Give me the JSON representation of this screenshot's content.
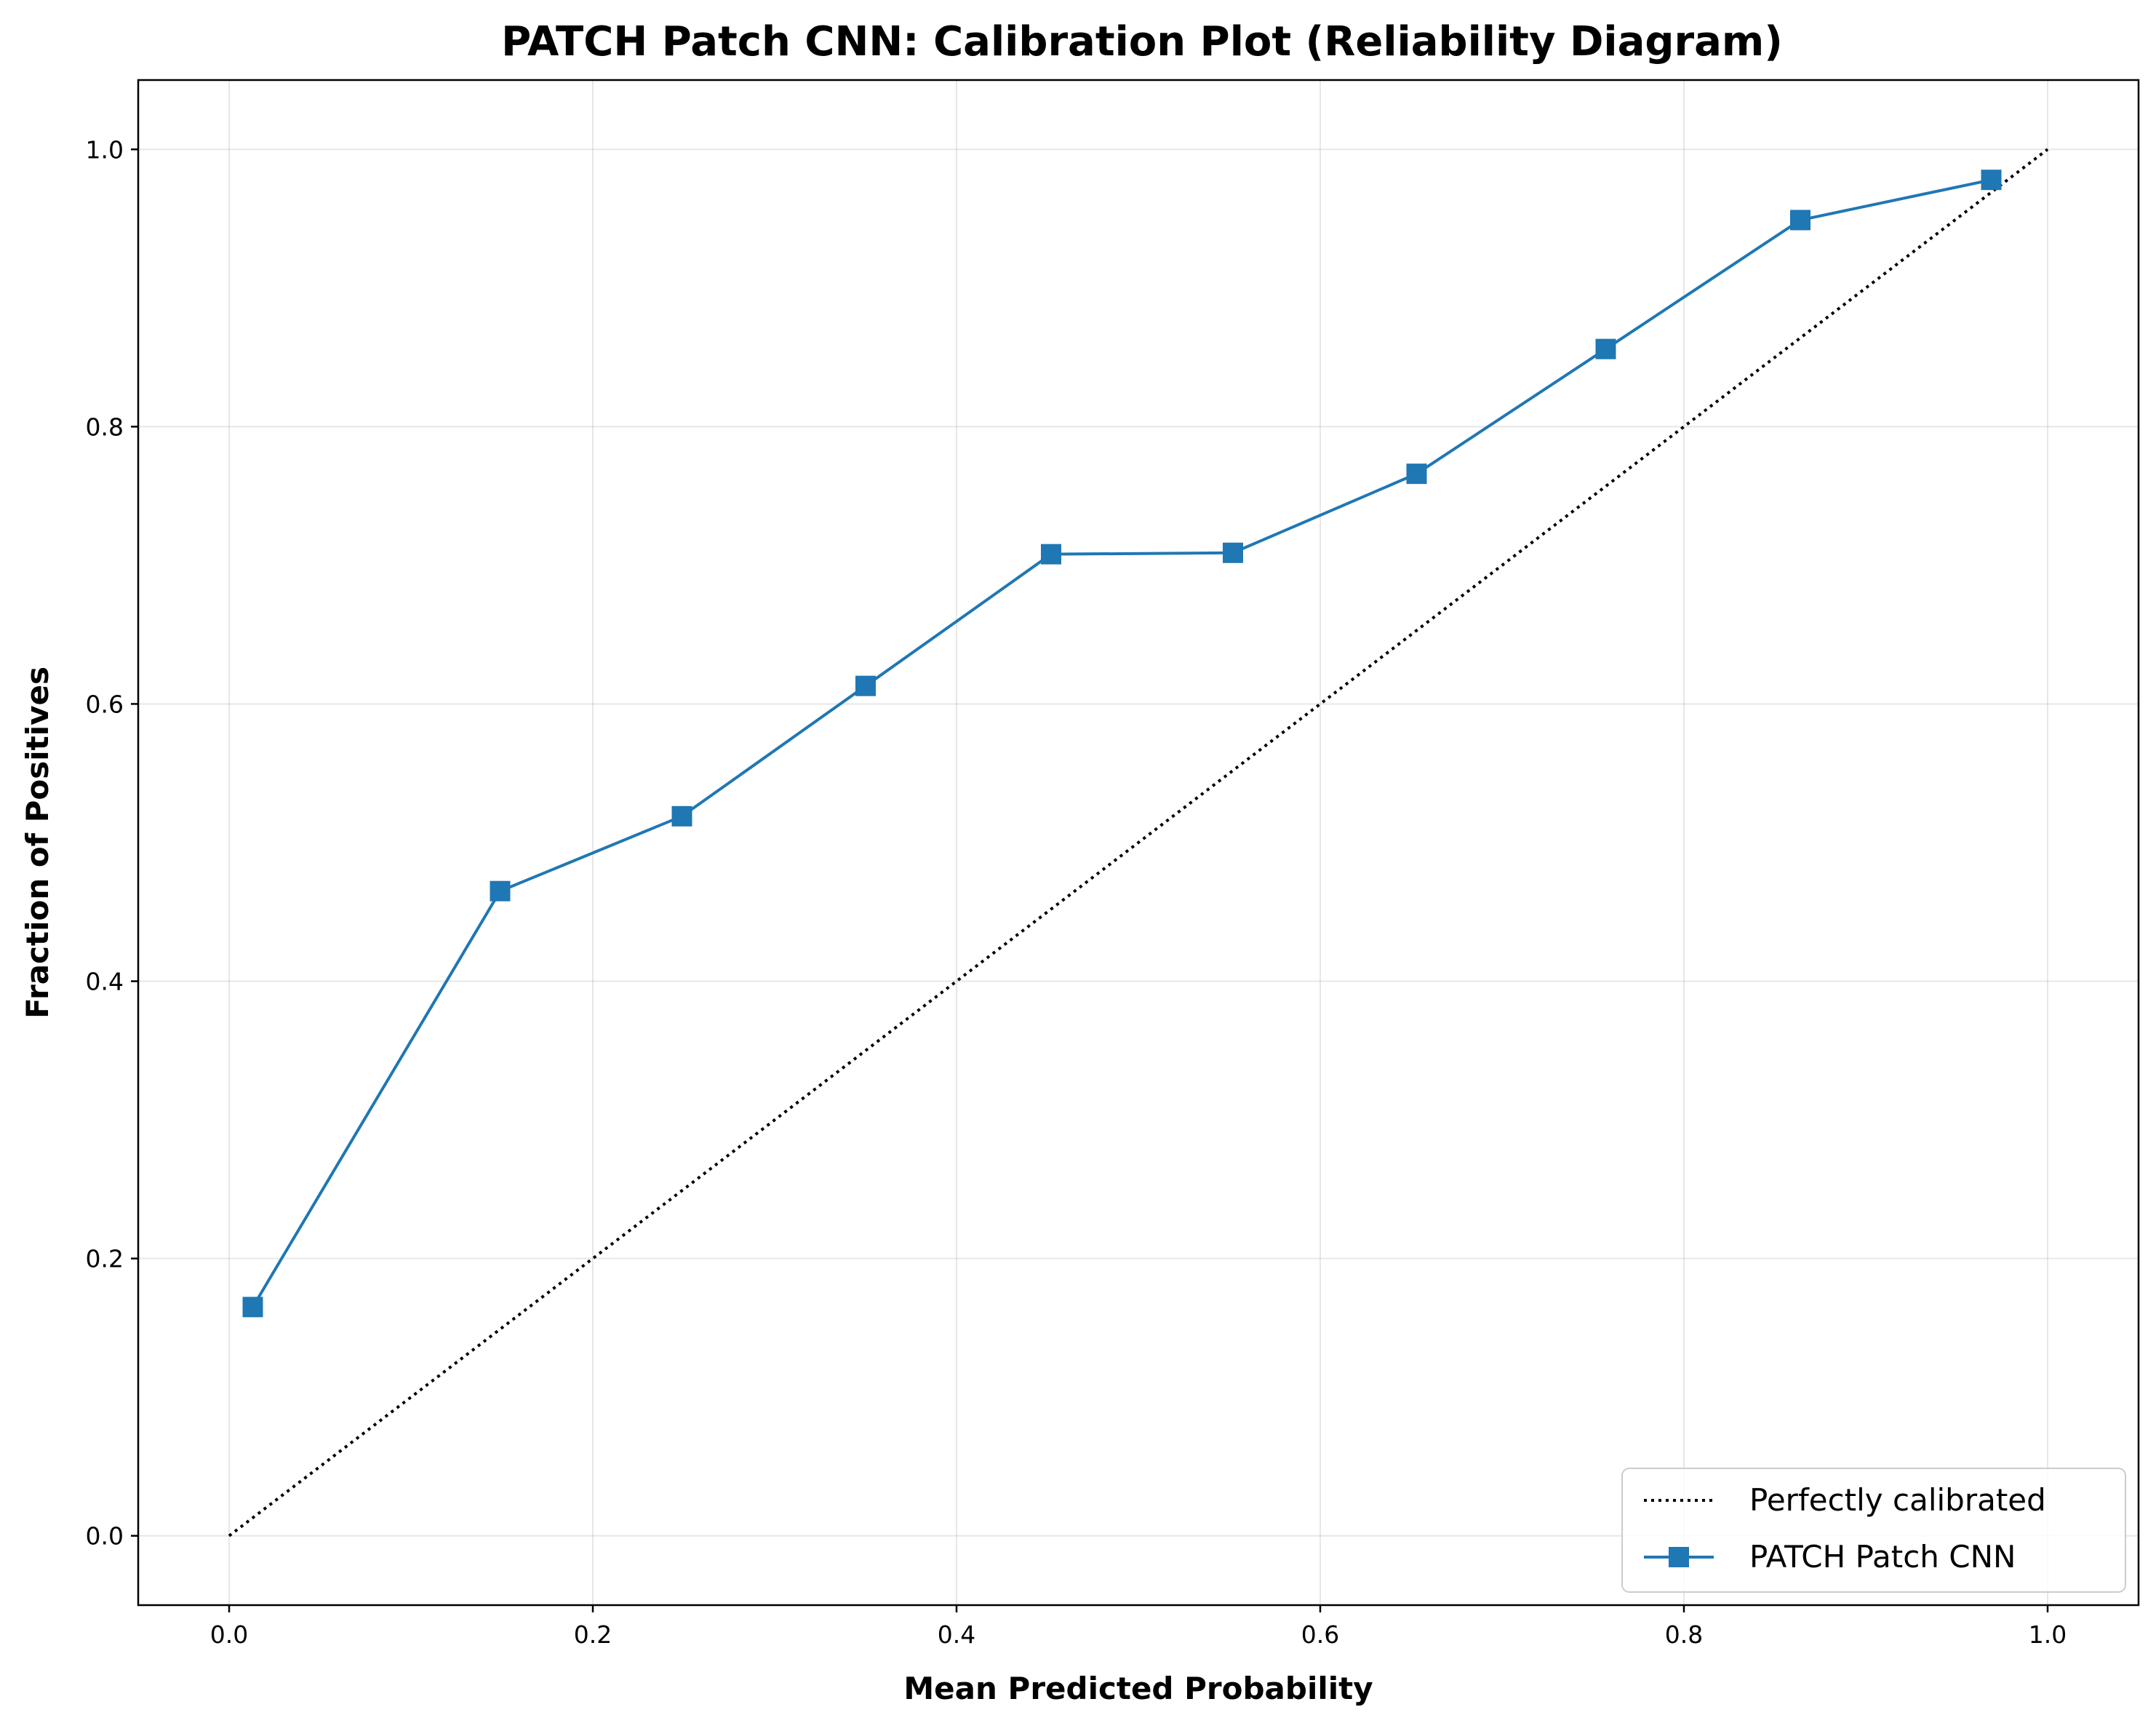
{
  "chart_data": {
    "type": "line",
    "title": "PATCH Patch CNN: Calibration Plot (Reliability Diagram)",
    "xlabel": "Mean Predicted Probability",
    "ylabel": "Fraction of Positives",
    "xlim": [
      -0.05,
      1.05
    ],
    "ylim": [
      -0.05,
      1.05
    ],
    "xticks": [
      0.0,
      0.2,
      0.4,
      0.6,
      0.8,
      1.0
    ],
    "yticks": [
      0.0,
      0.2,
      0.4,
      0.6,
      0.8,
      1.0
    ],
    "xtick_labels": [
      "0.0",
      "0.2",
      "0.4",
      "0.6",
      "0.8",
      "1.0"
    ],
    "ytick_labels": [
      "0.0",
      "0.2",
      "0.4",
      "0.6",
      "0.8",
      "1.0"
    ],
    "grid": true,
    "legend_position": "lower-right",
    "series": [
      {
        "name": "Perfectly calibrated",
        "style": "dotted",
        "color": "#000000",
        "x": [
          0.0,
          1.0
        ],
        "y": [
          0.0,
          1.0
        ]
      },
      {
        "name": "PATCH Patch CNN",
        "style": "solid",
        "marker": "square",
        "color": "#1f77b4",
        "x": [
          0.013,
          0.149,
          0.249,
          0.35,
          0.452,
          0.552,
          0.653,
          0.757,
          0.864,
          0.969
        ],
        "y": [
          0.165,
          0.465,
          0.519,
          0.613,
          0.708,
          0.709,
          0.766,
          0.856,
          0.949,
          0.978
        ]
      }
    ]
  }
}
